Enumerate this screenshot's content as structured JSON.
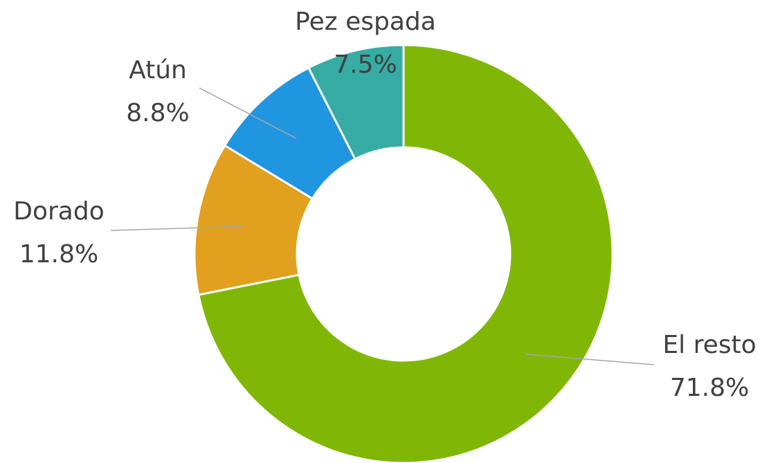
{
  "chart_data": {
    "type": "donut",
    "categories": [
      "El resto",
      "Dorado",
      "Atún",
      "Pez espada"
    ],
    "values": [
      71.8,
      11.8,
      8.8,
      7.5
    ],
    "value_labels": [
      "71.8%",
      "11.8%",
      "8.8%",
      "7.5%"
    ],
    "colors": [
      "#80b706",
      "#e2a01f",
      "#2196e0",
      "#36aca4"
    ]
  }
}
